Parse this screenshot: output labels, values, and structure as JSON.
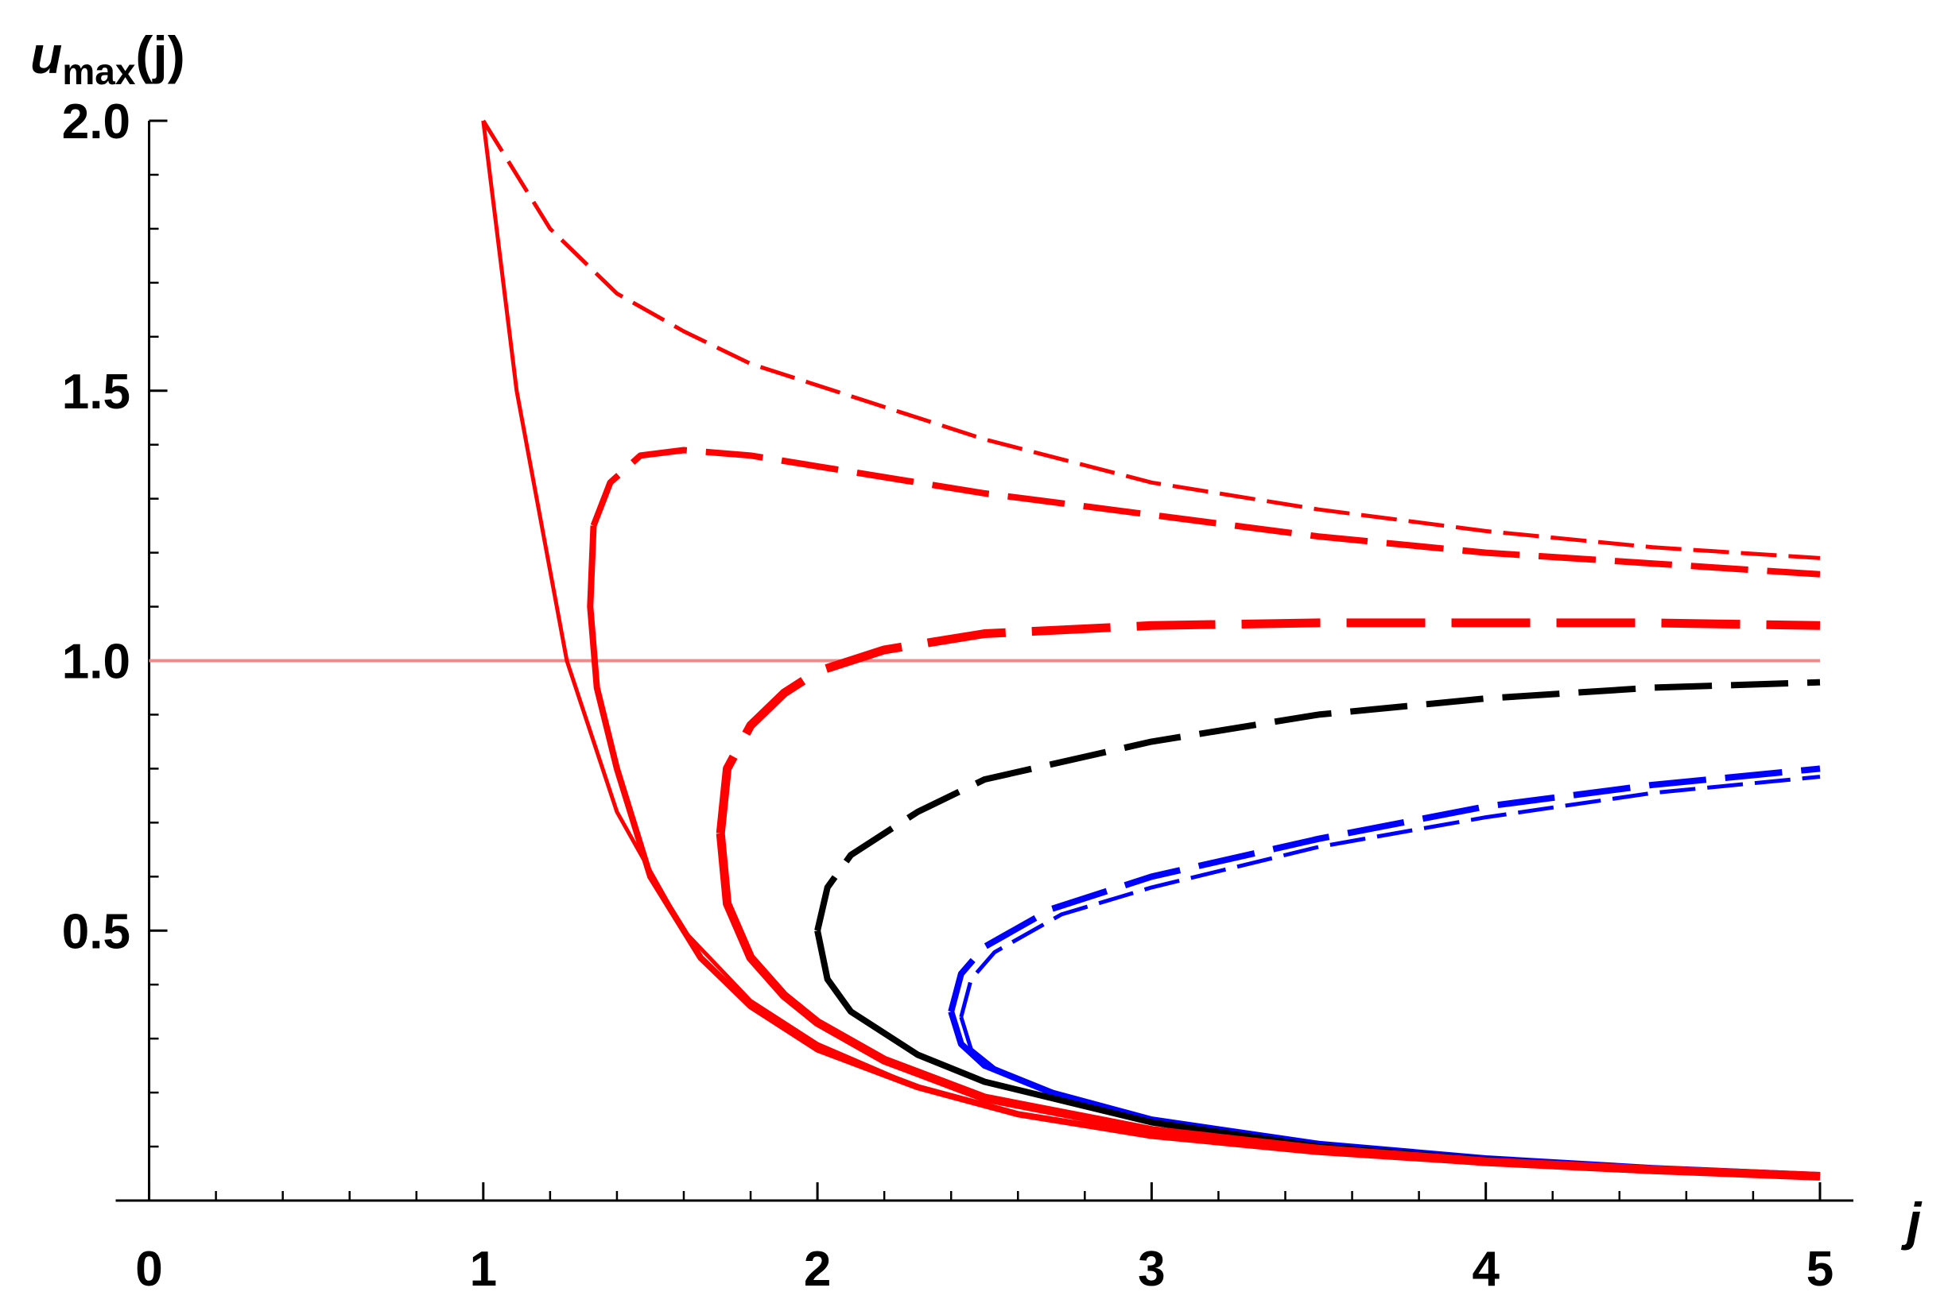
{
  "chart_data": {
    "type": "line",
    "ylabel": {
      "base": "u",
      "subscript": "max",
      "rest": "(j)"
    },
    "xlabel": "j",
    "xlim": [
      -0.1,
      5.1
    ],
    "ylim": [
      0,
      2.0
    ],
    "xticks": [
      0,
      1,
      2,
      3,
      4,
      5
    ],
    "yticks": [
      {
        "value": 0.5,
        "label": "0.5"
      },
      {
        "value": 1,
        "label": "1.0"
      },
      1.5,
      {
        "value": 2,
        "label": "2.0"
      }
    ],
    "xminorticks": [
      0.2,
      0.4,
      0.6,
      0.8,
      1.2,
      1.4,
      1.6,
      1.8,
      2.2,
      2.4,
      2.6,
      2.8,
      3.2,
      3.4,
      3.6,
      3.8,
      4.2,
      4.4,
      4.6,
      4.8
    ],
    "yminorticks": [
      0.1,
      0.2,
      0.3,
      0.4,
      0.6,
      0.7,
      0.8,
      0.9,
      1.1,
      1.2,
      1.3,
      1.4,
      1.6,
      1.7,
      1.8,
      1.9
    ],
    "hline": {
      "value": 1,
      "color": "#f08a8a"
    },
    "series": [
      {
        "color": "#0000ff",
        "linewidth": 5,
        "linestyle": "dashed",
        "x": [
          2.43,
          2.46,
          2.53,
          2.73,
          3,
          3.5,
          4,
          4.5,
          5
        ],
        "values": [
          0.34,
          0.41,
          0.46,
          0.53,
          0.58,
          0.655,
          0.71,
          0.755,
          0.785
        ]
      },
      {
        "color": "#0000ff",
        "linewidth": 5,
        "linestyle": "solid",
        "x": [
          2.43,
          2.46,
          2.53,
          2.73,
          3,
          3.5,
          4,
          4.5,
          5
        ],
        "values": [
          0.34,
          0.28,
          0.245,
          0.195,
          0.15,
          0.105,
          0.078,
          0.06,
          0.047
        ]
      },
      {
        "color": "#0000ff",
        "linewidth": 8,
        "linestyle": "dashed",
        "x": [
          2.4,
          2.43,
          2.5,
          2.7,
          3,
          3.5,
          4,
          4.5,
          5
        ],
        "values": [
          0.35,
          0.42,
          0.47,
          0.54,
          0.6,
          0.67,
          0.73,
          0.77,
          0.8
        ]
      },
      {
        "color": "#0000ff",
        "linewidth": 8,
        "linestyle": "solid",
        "x": [
          2.4,
          2.43,
          2.5,
          2.7,
          3,
          3.5,
          4,
          4.5,
          5
        ],
        "values": [
          0.35,
          0.29,
          0.25,
          0.2,
          0.15,
          0.105,
          0.078,
          0.06,
          0.047
        ]
      },
      {
        "color": "#000000",
        "linewidth": 8,
        "linestyle": "dashed",
        "x": [
          2.0,
          2.03,
          2.1,
          2.3,
          2.5,
          3,
          3.5,
          4,
          4.5,
          5
        ],
        "values": [
          0.5,
          0.58,
          0.64,
          0.72,
          0.78,
          0.85,
          0.9,
          0.93,
          0.95,
          0.96
        ]
      },
      {
        "color": "#000000",
        "linewidth": 8,
        "linestyle": "solid",
        "x": [
          2.0,
          2.03,
          2.1,
          2.3,
          2.5,
          3,
          3.5,
          4,
          4.5,
          5
        ],
        "values": [
          0.5,
          0.41,
          0.35,
          0.27,
          0.22,
          0.145,
          0.1,
          0.075,
          0.058,
          0.046
        ]
      },
      {
        "color": "#ff0000",
        "linewidth": 5,
        "linestyle": "dashed",
        "x": [
          1,
          1.2,
          1.4,
          1.6,
          1.8,
          2,
          2.5,
          3,
          3.5,
          4,
          4.5,
          5
        ],
        "values": [
          2.0,
          1.8,
          1.68,
          1.61,
          1.55,
          1.51,
          1.41,
          1.33,
          1.28,
          1.24,
          1.21,
          1.19
        ]
      },
      {
        "color": "#ff0000",
        "linewidth": 5,
        "linestyle": "solid",
        "x": [
          1,
          1.1,
          1.25,
          1.4,
          1.6,
          1.8,
          2.0,
          2.3,
          2.6,
          3,
          3.5,
          4,
          4.5,
          5
        ],
        "values": [
          2.0,
          1.5,
          1.0,
          0.72,
          0.5,
          0.37,
          0.29,
          0.21,
          0.16,
          0.12,
          0.09,
          0.07,
          0.055,
          0.045
        ]
      },
      {
        "color": "#ff0000",
        "linewidth": 8,
        "linestyle": "dashed",
        "x": [
          1.33,
          1.38,
          1.47,
          1.6,
          1.8,
          2,
          2.5,
          3,
          3.5,
          4,
          4.5,
          5
        ],
        "values": [
          1.25,
          1.33,
          1.38,
          1.39,
          1.38,
          1.36,
          1.31,
          1.27,
          1.23,
          1.2,
          1.18,
          1.16
        ]
      },
      {
        "color": "#ff0000",
        "linewidth": 8,
        "linestyle": "solid",
        "x": [
          1.33,
          1.32,
          1.34,
          1.4,
          1.5,
          1.65,
          1.8,
          2,
          2.3,
          2.6,
          3,
          3.5,
          4,
          4.5,
          5
        ],
        "values": [
          1.25,
          1.1,
          0.95,
          0.8,
          0.6,
          0.45,
          0.36,
          0.28,
          0.21,
          0.16,
          0.12,
          0.09,
          0.07,
          0.055,
          0.045
        ]
      },
      {
        "color": "#ff0000",
        "linewidth": 11,
        "linestyle": "dashed",
        "x": [
          1.71,
          1.73,
          1.8,
          1.9,
          2,
          2.2,
          2.5,
          3,
          3.5,
          4,
          4.5,
          5
        ],
        "values": [
          0.68,
          0.8,
          0.88,
          0.94,
          0.98,
          1.02,
          1.05,
          1.065,
          1.07,
          1.07,
          1.07,
          1.065
        ]
      },
      {
        "color": "#ff0000",
        "linewidth": 11,
        "linestyle": "solid",
        "x": [
          1.71,
          1.73,
          1.8,
          1.9,
          2,
          2.2,
          2.5,
          3,
          3.5,
          4,
          4.5,
          5
        ],
        "values": [
          0.68,
          0.55,
          0.45,
          0.38,
          0.33,
          0.26,
          0.19,
          0.13,
          0.095,
          0.072,
          0.057,
          0.045
        ]
      }
    ]
  }
}
